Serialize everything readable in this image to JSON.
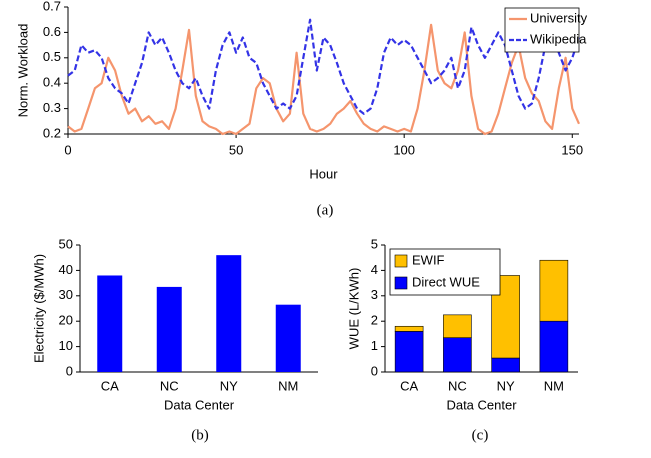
{
  "chart_data": [
    {
      "type": "line",
      "caption": "(a)",
      "xlabel": "Hour",
      "ylabel": "Norm. Workload",
      "xlim": [
        0,
        152
      ],
      "xticks": [
        0,
        50,
        100,
        150
      ],
      "ylim": [
        0.2,
        0.7
      ],
      "yticks": [
        0.2,
        0.3,
        0.4,
        0.5,
        0.6,
        0.7
      ],
      "legend": "upper right",
      "x": [
        0,
        2,
        4,
        6,
        8,
        10,
        12,
        14,
        16,
        18,
        20,
        22,
        24,
        26,
        28,
        30,
        32,
        34,
        36,
        38,
        40,
        42,
        44,
        46,
        48,
        50,
        52,
        54,
        56,
        58,
        60,
        62,
        64,
        66,
        68,
        70,
        72,
        74,
        76,
        78,
        80,
        82,
        84,
        86,
        88,
        90,
        92,
        94,
        96,
        98,
        100,
        102,
        104,
        106,
        108,
        110,
        112,
        114,
        116,
        118,
        120,
        122,
        124,
        126,
        128,
        130,
        132,
        134,
        136,
        138,
        140,
        142,
        144,
        146,
        148,
        150,
        152
      ],
      "series": [
        {
          "name": "University",
          "color": "#f5956d",
          "style": "solid",
          "values": [
            0.23,
            0.21,
            0.22,
            0.3,
            0.38,
            0.4,
            0.5,
            0.45,
            0.35,
            0.28,
            0.3,
            0.25,
            0.27,
            0.24,
            0.25,
            0.22,
            0.3,
            0.45,
            0.61,
            0.35,
            0.25,
            0.23,
            0.22,
            0.2,
            0.21,
            0.2,
            0.22,
            0.24,
            0.38,
            0.42,
            0.4,
            0.3,
            0.25,
            0.28,
            0.52,
            0.28,
            0.22,
            0.21,
            0.22,
            0.24,
            0.28,
            0.3,
            0.33,
            0.28,
            0.24,
            0.22,
            0.21,
            0.23,
            0.22,
            0.21,
            0.22,
            0.21,
            0.3,
            0.45,
            0.63,
            0.45,
            0.4,
            0.38,
            0.45,
            0.6,
            0.35,
            0.22,
            0.2,
            0.21,
            0.28,
            0.38,
            0.48,
            0.55,
            0.42,
            0.36,
            0.33,
            0.25,
            0.22,
            0.38,
            0.5,
            0.3,
            0.24
          ]
        },
        {
          "name": "Wikipedia",
          "color": "#3333e6",
          "style": "dashed",
          "values": [
            0.43,
            0.45,
            0.55,
            0.52,
            0.53,
            0.5,
            0.42,
            0.38,
            0.36,
            0.32,
            0.4,
            0.48,
            0.6,
            0.55,
            0.58,
            0.52,
            0.45,
            0.4,
            0.38,
            0.42,
            0.35,
            0.3,
            0.45,
            0.55,
            0.6,
            0.52,
            0.58,
            0.5,
            0.48,
            0.4,
            0.35,
            0.3,
            0.32,
            0.3,
            0.35,
            0.5,
            0.65,
            0.45,
            0.58,
            0.55,
            0.48,
            0.4,
            0.35,
            0.3,
            0.28,
            0.3,
            0.38,
            0.52,
            0.58,
            0.55,
            0.57,
            0.55,
            0.5,
            0.45,
            0.4,
            0.42,
            0.45,
            0.5,
            0.38,
            0.45,
            0.62,
            0.55,
            0.5,
            0.55,
            0.6,
            0.55,
            0.45,
            0.35,
            0.3,
            0.32,
            0.42,
            0.55,
            0.58,
            0.52,
            0.45,
            0.5,
            0.58
          ]
        }
      ]
    },
    {
      "type": "bar",
      "caption": "(b)",
      "xlabel": "Data Center",
      "ylabel": "Electricity ($/MWh)",
      "categories": [
        "CA",
        "NC",
        "NY",
        "NM"
      ],
      "values": [
        38,
        33.5,
        46,
        26.5
      ],
      "color": "#0000ff",
      "ylim": [
        0,
        50
      ],
      "yticks": [
        0,
        10,
        20,
        30,
        40,
        50
      ]
    },
    {
      "type": "stacked_bar",
      "caption": "(c)",
      "xlabel": "Data Center",
      "ylabel": "WUE (L/KWh)",
      "categories": [
        "CA",
        "NC",
        "NY",
        "NM"
      ],
      "legend": "upper left",
      "ylim": [
        0,
        5
      ],
      "yticks": [
        0,
        1,
        2,
        3,
        4,
        5
      ],
      "series": [
        {
          "name": "Direct WUE",
          "color": "#0000ff",
          "values": [
            1.6,
            1.35,
            0.55,
            2.0
          ]
        },
        {
          "name": "EWIF",
          "color": "#ffc000",
          "values": [
            0.2,
            0.9,
            3.25,
            2.4
          ]
        }
      ]
    }
  ]
}
